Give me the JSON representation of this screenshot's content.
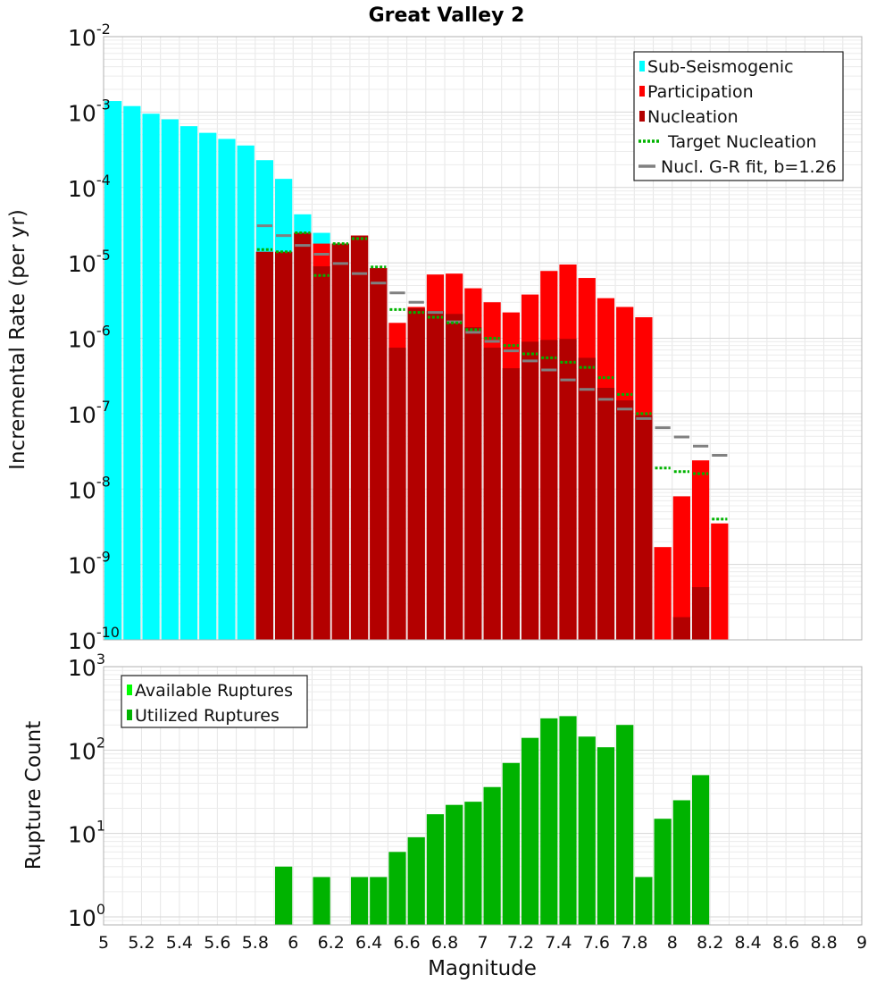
{
  "chart_data": [
    {
      "type": "bar",
      "title": "Great Valley 2",
      "ylabel": "Incremental Rate (per yr)",
      "xlim": [
        5,
        9
      ],
      "ylim": [
        1e-10,
        0.01
      ],
      "yscale": "log",
      "grid": true,
      "legend_position": "top-right",
      "y_tick_labels": [
        {
          "base": "10",
          "exp": "-10"
        },
        {
          "base": "10",
          "exp": "-9"
        },
        {
          "base": "10",
          "exp": "-8"
        },
        {
          "base": "10",
          "exp": "-7"
        },
        {
          "base": "10",
          "exp": "-6"
        },
        {
          "base": "10",
          "exp": "-5"
        },
        {
          "base": "10",
          "exp": "-4"
        },
        {
          "base": "10",
          "exp": "-3"
        },
        {
          "base": "10",
          "exp": "-2"
        }
      ],
      "legend": [
        {
          "label": "Sub-Seismogenic",
          "color": "#00ffff",
          "style": "bar"
        },
        {
          "label": "Participation",
          "color": "#ff0000",
          "style": "bar"
        },
        {
          "label": "Nucleation",
          "color": "#b30000",
          "style": "bar"
        },
        {
          "label": "Target Nucleation",
          "color": "#00b300",
          "style": "dotted"
        },
        {
          "label": "Nucl. G-R fit, b=1.26",
          "color": "#808080",
          "style": "line"
        }
      ],
      "series": [
        {
          "name": "Sub-Seismogenic",
          "color": "#00ffff",
          "x": [
            5.05,
            5.15,
            5.25,
            5.35,
            5.45,
            5.55,
            5.65,
            5.75,
            5.85,
            5.95,
            6.05,
            6.15
          ],
          "values": [
            0.0014,
            0.0012,
            0.00095,
            0.0008,
            0.00065,
            0.00053,
            0.00044,
            0.00036,
            0.00023,
            0.00013,
            4.4e-05,
            2.5e-05
          ]
        },
        {
          "name": "Participation",
          "color": "#ff0000",
          "x": [
            5.85,
            5.95,
            6.05,
            6.15,
            6.25,
            6.35,
            6.45,
            6.55,
            6.65,
            6.75,
            6.85,
            6.95,
            7.05,
            7.15,
            7.25,
            7.35,
            7.45,
            7.55,
            7.65,
            7.75,
            7.85,
            7.95,
            8.05,
            8.15,
            8.25
          ],
          "values": [
            1.4e-05,
            1.4e-05,
            2.5e-05,
            1.8e-05,
            1.8e-05,
            2.3e-05,
            8.5e-06,
            1.6e-06,
            2.6e-06,
            7e-06,
            7.2e-06,
            4.6e-06,
            3e-06,
            2.2e-06,
            3.8e-06,
            7.8e-06,
            9.5e-06,
            6.3e-06,
            3.4e-06,
            2.6e-06,
            1.9e-06,
            1.7e-09,
            8e-09,
            2.4e-08,
            3.5e-09
          ]
        },
        {
          "name": "Nucleation",
          "color": "#b30000",
          "x": [
            5.85,
            5.95,
            6.05,
            6.15,
            6.25,
            6.35,
            6.45,
            6.55,
            6.65,
            6.75,
            6.85,
            6.95,
            7.05,
            7.15,
            7.25,
            7.35,
            7.45,
            7.55,
            7.65,
            7.75,
            7.85,
            7.95,
            8.05,
            8.15,
            8.25
          ],
          "values": [
            1.4e-05,
            1.4e-05,
            2.5e-05,
            9e-06,
            1.8e-05,
            2.3e-05,
            8.5e-06,
            7.5e-07,
            2.5e-06,
            2.3e-06,
            2.1e-06,
            1.4e-06,
            7.5e-07,
            4e-07,
            9e-07,
            9.5e-07,
            9.8e-07,
            5.5e-07,
            2.2e-07,
            1.5e-07,
            9.5e-08,
            1e-10,
            2e-10,
            5e-10,
            1e-10
          ]
        },
        {
          "name": "Target Nucleation",
          "color": "#00b300",
          "x": [
            5.85,
            5.95,
            6.05,
            6.15,
            6.25,
            6.35,
            6.45,
            6.55,
            6.65,
            6.75,
            6.85,
            6.95,
            7.05,
            7.15,
            7.25,
            7.35,
            7.45,
            7.55,
            7.65,
            7.75,
            7.85,
            7.95,
            8.05,
            8.15,
            8.25
          ],
          "values": [
            1.5e-05,
            1.4e-05,
            2.5e-05,
            6.8e-06,
            1.8e-05,
            2.1e-05,
            8.8e-06,
            2.4e-06,
            2.2e-06,
            1.9e-06,
            1.6e-06,
            1.3e-06,
            1e-06,
            8e-07,
            6.2e-07,
            5.5e-07,
            4.8e-07,
            4.1e-07,
            3e-07,
            1.8e-07,
            1e-07,
            1.9e-08,
            1.7e-08,
            1.6e-08,
            4e-09
          ]
        },
        {
          "name": "Nucl. G-R fit, b=1.26",
          "color": "#808080",
          "x": [
            5.85,
            5.95,
            6.05,
            6.15,
            6.25,
            6.35,
            6.45,
            6.55,
            6.65,
            6.75,
            6.85,
            6.95,
            7.05,
            7.15,
            7.25,
            7.35,
            7.45,
            7.55,
            7.65,
            7.75,
            7.85,
            7.95,
            8.05,
            8.15,
            8.25
          ],
          "values": [
            3.1e-05,
            2.3e-05,
            1.7e-05,
            1.3e-05,
            9.8e-06,
            7.2e-06,
            5.4e-06,
            4e-06,
            3e-06,
            2.2e-06,
            1.65e-06,
            1.2e-06,
            9.1e-07,
            6.8e-07,
            5e-07,
            3.8e-07,
            2.8e-07,
            2.1e-07,
            1.55e-07,
            1.15e-07,
            8.6e-08,
            6.5e-08,
            4.9e-08,
            3.7e-08,
            2.8e-08
          ]
        }
      ]
    },
    {
      "type": "bar",
      "xlabel": "Magnitude",
      "ylabel": "Rupture Count",
      "xlim": [
        5,
        9
      ],
      "ylim": [
        0.8,
        1000
      ],
      "yscale": "log",
      "grid": true,
      "legend_position": "top-left",
      "x_tick_labels": [
        "5",
        "5.2",
        "5.4",
        "5.6",
        "5.8",
        "6",
        "6.2",
        "6.4",
        "6.6",
        "6.8",
        "7",
        "7.2",
        "7.4",
        "7.6",
        "7.8",
        "8",
        "8.2",
        "8.4",
        "8.6",
        "8.8",
        "9"
      ],
      "y_tick_labels": [
        {
          "base": "10",
          "exp": "0"
        },
        {
          "base": "10",
          "exp": "1"
        },
        {
          "base": "10",
          "exp": "2"
        },
        {
          "base": "10",
          "exp": "3"
        }
      ],
      "legend": [
        {
          "label": "Available Ruptures",
          "color": "#00ff00",
          "style": "bar"
        },
        {
          "label": "Utilized Ruptures",
          "color": "#00b300",
          "style": "bar"
        }
      ],
      "series": [
        {
          "name": "Utilized Ruptures",
          "color": "#00b300",
          "x": [
            5.95,
            6.15,
            6.35,
            6.45,
            6.55,
            6.65,
            6.75,
            6.85,
            6.95,
            7.05,
            7.15,
            7.25,
            7.35,
            7.45,
            7.55,
            7.65,
            7.75,
            7.85,
            7.95,
            8.05,
            8.15
          ],
          "values": [
            4,
            3,
            3,
            3,
            6,
            9,
            17,
            22,
            24,
            36,
            70,
            140,
            240,
            255,
            145,
            108,
            200,
            3,
            15,
            25,
            50
          ]
        }
      ]
    }
  ]
}
